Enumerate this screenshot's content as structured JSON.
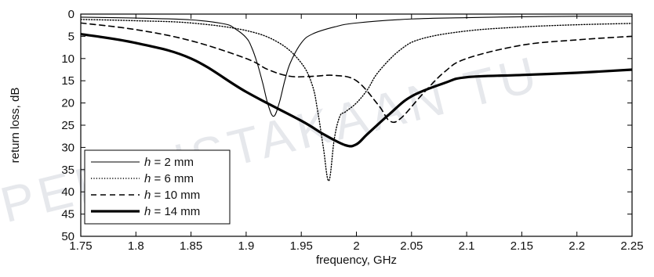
{
  "chart_data": {
    "type": "line",
    "xlabel": "frequency, GHz",
    "ylabel": "return loss, dB",
    "xlim": [
      1.75,
      2.25
    ],
    "ylim": [
      0,
      50
    ],
    "y_inverted": true,
    "grid": false,
    "legend_position": "bottom-left",
    "x_ticks": [
      "1.75",
      "1.8",
      "1.85",
      "1.9",
      "1.95",
      "2",
      "2.05",
      "2.1",
      "2.15",
      "2.2",
      "2.25"
    ],
    "y_ticks": [
      "0",
      "5",
      "10",
      "15",
      "20",
      "25",
      "30",
      "35",
      "40",
      "45",
      "50"
    ],
    "watermark": "PERPUSTAKAAN TU",
    "series": [
      {
        "name": "h = 2 mm",
        "legend_italic": "h",
        "legend_rest": " = 2 mm",
        "style": "solid-thin",
        "x": [
          1.75,
          1.8,
          1.85,
          1.88,
          1.89,
          1.9,
          1.905,
          1.91,
          1.915,
          1.92,
          1.925,
          1.93,
          1.935,
          1.94,
          1.95,
          1.96,
          1.98,
          2.0,
          2.05,
          2.1,
          2.15,
          2.2,
          2.25
        ],
        "y": [
          0.7,
          0.9,
          1.3,
          2.2,
          3.3,
          5.3,
          7.5,
          11.0,
          15.5,
          20.5,
          23.0,
          20.0,
          15.0,
          11.0,
          6.5,
          4.5,
          2.9,
          2.0,
          1.1,
          0.8,
          0.6,
          0.5,
          0.5
        ]
      },
      {
        "name": "h = 6 mm",
        "legend_italic": "h",
        "legend_rest": " = 6 mm",
        "style": "dotted",
        "x": [
          1.75,
          1.8,
          1.85,
          1.9,
          1.93,
          1.95,
          1.96,
          1.965,
          1.97,
          1.975,
          1.98,
          1.985,
          1.99,
          2.0,
          2.01,
          2.02,
          2.04,
          2.06,
          2.1,
          2.15,
          2.2,
          2.25
        ],
        "y": [
          1.2,
          1.5,
          2.0,
          3.7,
          6.5,
          11.0,
          16.0,
          22.0,
          30.0,
          37.5,
          28.0,
          23.0,
          22.0,
          20.0,
          17.0,
          13.0,
          8.0,
          5.5,
          3.8,
          2.9,
          2.4,
          2.1
        ]
      },
      {
        "name": "h = 10 mm",
        "legend_italic": "h",
        "legend_rest": " = 10 mm",
        "style": "dashed",
        "x": [
          1.75,
          1.8,
          1.85,
          1.9,
          1.92,
          1.94,
          1.96,
          1.98,
          2.0,
          2.02,
          2.03,
          2.04,
          2.06,
          2.08,
          2.1,
          2.15,
          2.2,
          2.25
        ],
        "y": [
          2.0,
          3.5,
          6.0,
          10.0,
          12.5,
          14.0,
          14.0,
          13.8,
          15.0,
          20.5,
          24.0,
          23.5,
          18.0,
          13.0,
          10.0,
          7.0,
          5.8,
          5.0
        ]
      },
      {
        "name": "h = 14 mm",
        "legend_italic": "h",
        "legend_rest": " = 14 mm",
        "style": "solid-thick",
        "x": [
          1.75,
          1.8,
          1.85,
          1.9,
          1.95,
          1.97,
          1.99,
          2.0,
          2.01,
          2.03,
          2.05,
          2.08,
          2.1,
          2.15,
          2.2,
          2.25
        ],
        "y": [
          4.5,
          6.5,
          10.0,
          17.5,
          24.0,
          27.0,
          29.5,
          29.3,
          27.0,
          22.5,
          18.5,
          15.5,
          14.2,
          13.7,
          13.2,
          12.5
        ]
      }
    ]
  }
}
